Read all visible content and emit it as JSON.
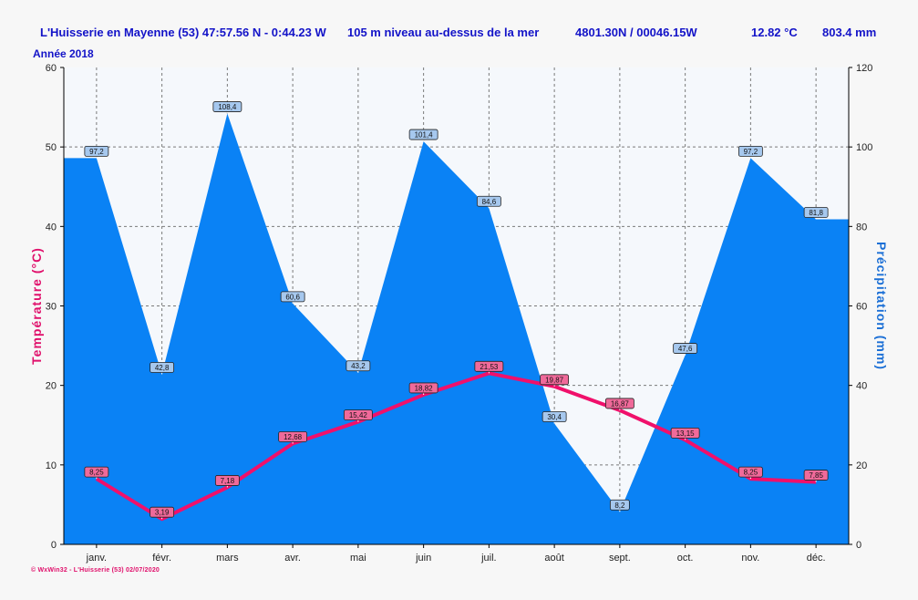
{
  "header": {
    "location": "L'Huisserie en Mayenne (53) 47:57.56 N - 0:44.23 W",
    "altitude": "105 m niveau au-dessus de la mer",
    "grid_ref": "4801.30N / 00046.15W",
    "avg_temp": "12.82 °C",
    "total_precip": "803.4 mm"
  },
  "subtitle": "Année 2018",
  "footer": "© WxWin32 - L'Huisserie (53) 02/07/2020",
  "colors": {
    "precip_fill": "#0a82f5",
    "precip_label_bg": "#a6c8ee",
    "temp_line": "#f0106b",
    "temp_label_bg": "#f06a9a",
    "temp_axis_title": "#e0106b",
    "precip_axis_title": "#1b6fd6",
    "plot_bg": "#f5f8fc",
    "grid": "#7a7a7a"
  },
  "chart_data": {
    "type": "area",
    "categories": [
      "janv.",
      "févr.",
      "mars",
      "avr.",
      "mai",
      "juin",
      "juil.",
      "août",
      "sept.",
      "oct.",
      "nov.",
      "déc."
    ],
    "series": [
      {
        "name": "Précipitation",
        "type": "area",
        "axis": "right",
        "values": [
          97.2,
          42.8,
          108.4,
          60.6,
          43.2,
          101.4,
          84.6,
          30.4,
          8.2,
          47.6,
          97.2,
          81.8
        ],
        "labels": [
          "97,2",
          "42,8",
          "108,4",
          "60,6",
          "43,2",
          "101,4",
          "84,6",
          "30,4",
          "8,2",
          "47,6",
          "97,2",
          "81,8"
        ]
      },
      {
        "name": "Température",
        "type": "line",
        "axis": "left",
        "values": [
          8.25,
          3.19,
          7.18,
          12.68,
          15.42,
          18.82,
          21.53,
          19.87,
          16.87,
          13.15,
          8.25,
          7.85
        ],
        "labels": [
          "8,25",
          "3,19",
          "7,18",
          "12,68",
          "15,42",
          "18,82",
          "21,53",
          "19,87",
          "16,87",
          "13,15",
          "8,25",
          "7,85"
        ]
      }
    ],
    "y_left": {
      "label": "Température  (°C)",
      "range": [
        0,
        60
      ],
      "ticks": [
        0,
        10,
        20,
        30,
        40,
        50,
        60
      ]
    },
    "y_right": {
      "label": "Précipitation  (mm)",
      "range": [
        0,
        120
      ],
      "ticks": [
        0,
        20,
        40,
        60,
        80,
        100,
        120
      ]
    },
    "grid": true
  }
}
